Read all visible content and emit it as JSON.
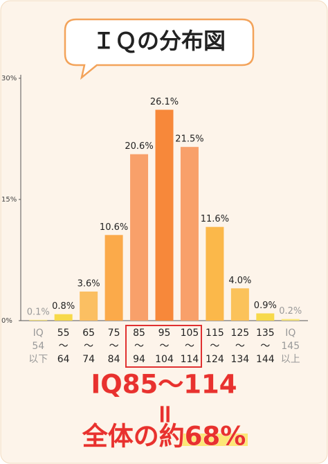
{
  "chart_data": {
    "type": "bar",
    "title": "ＩＱの分布図",
    "categories": [
      [
        "IQ",
        "54",
        "以下"
      ],
      [
        "55",
        "～",
        "64"
      ],
      [
        "65",
        "～",
        "74"
      ],
      [
        "75",
        "～",
        "84"
      ],
      [
        "85",
        "～",
        "94"
      ],
      [
        "95",
        "～",
        "104"
      ],
      [
        "105",
        "～",
        "114"
      ],
      [
        "115",
        "～",
        "124"
      ],
      [
        "125",
        "～",
        "134"
      ],
      [
        "135",
        "～",
        "144"
      ],
      [
        "IQ",
        "145",
        "以上"
      ]
    ],
    "values": [
      0.1,
      0.8,
      3.6,
      10.6,
      20.6,
      26.1,
      21.5,
      11.6,
      4.0,
      0.9,
      0.2
    ],
    "value_labels": [
      "0.1%",
      "0.8%",
      "3.6%",
      "10.6%",
      "20.6%",
      "26.1%",
      "21.5%",
      "11.6%",
      "4.0%",
      "0.9%",
      "0.2%"
    ],
    "colors": [
      "#f7e57a",
      "#f7d94a",
      "#fbbf62",
      "#fbaa4a",
      "#f8a06a",
      "#f7883a",
      "#f8a06a",
      "#fbb84a",
      "#fbc25a",
      "#f7d94a",
      "#f7e57a"
    ],
    "label_colors": [
      "#999999",
      "#222222",
      "#222222",
      "#222222",
      "#222222",
      "#222222",
      "#222222",
      "#222222",
      "#222222",
      "#222222",
      "#999999"
    ],
    "ylim": [
      0,
      30
    ],
    "yticks": [
      {
        "value": 0,
        "label": "0%"
      },
      {
        "value": 15,
        "label": "15%"
      },
      {
        "value": 30,
        "label": "30%"
      }
    ],
    "annotations": [
      "IQ85～114",
      "=",
      "全体の約68%"
    ]
  }
}
